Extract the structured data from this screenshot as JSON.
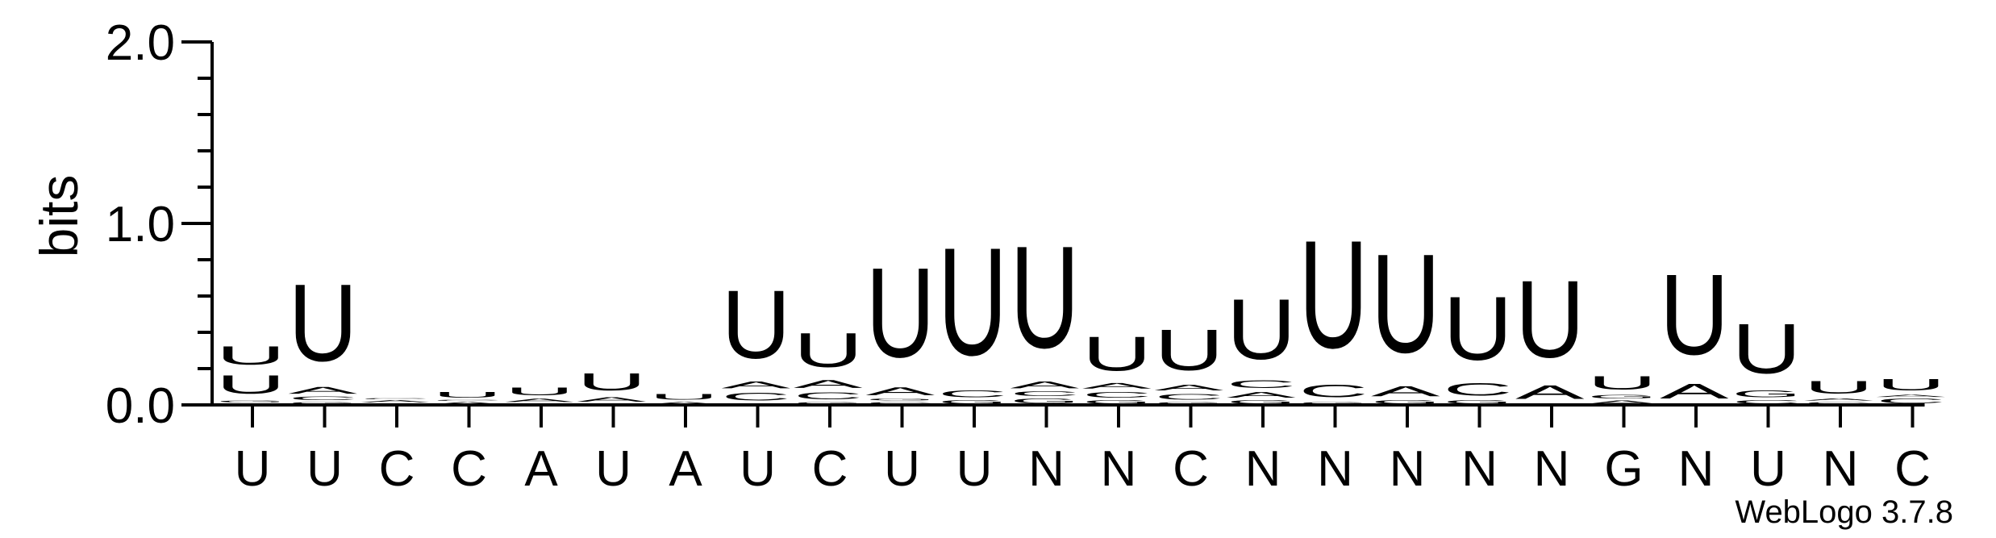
{
  "chart_data": {
    "type": "sequence-logo",
    "ylabel": "bits",
    "yticks": [
      "0.0",
      "1.0",
      "2.0"
    ],
    "ylim": [
      0,
      2
    ],
    "credit": "WebLogo 3.7.8",
    "colors": {
      "U": "#ff8c00",
      "A": "#ff8c00",
      "C": "#0000ee",
      "G": "#0000ee"
    },
    "consensus": [
      "U",
      "U",
      "C",
      "C",
      "A",
      "U",
      "A",
      "U",
      "C",
      "U",
      "U",
      "N",
      "N",
      "C",
      "N",
      "N",
      "N",
      "N",
      "N",
      "G",
      "N",
      "U",
      "N",
      "C"
    ],
    "columns": [
      [
        [
          "C",
          0.01
        ],
        [
          "G",
          0.02
        ],
        [
          "U",
          0.16
        ],
        [
          "U",
          0.16
        ]
      ],
      [
        [
          "G",
          0.02
        ],
        [
          "C",
          0.03
        ],
        [
          "A",
          0.06
        ],
        [
          "U",
          0.68
        ]
      ],
      [
        [
          "U",
          0.01
        ],
        [
          "A",
          0.02
        ],
        [
          "C",
          0.01
        ]
      ],
      [
        [
          "A",
          0.02
        ],
        [
          "C",
          0.01
        ],
        [
          "U",
          0.05
        ]
      ],
      [
        [
          "C",
          0.01
        ],
        [
          "A",
          0.03
        ],
        [
          "U",
          0.07
        ]
      ],
      [
        [
          "C",
          0.01
        ],
        [
          "A",
          0.04
        ],
        [
          "U",
          0.15
        ]
      ],
      [
        [
          "A",
          0.02
        ],
        [
          "U",
          0.05
        ]
      ],
      [
        [
          "G",
          0.01
        ],
        [
          "C",
          0.07
        ],
        [
          "A",
          0.06
        ],
        [
          "U",
          0.6
        ]
      ],
      [
        [
          "G",
          0.02
        ],
        [
          "C",
          0.06
        ],
        [
          "A",
          0.07
        ],
        [
          "U",
          0.3
        ]
      ],
      [
        [
          "C",
          0.02
        ],
        [
          "G",
          0.02
        ],
        [
          "A",
          0.07
        ],
        [
          "U",
          0.79
        ]
      ],
      [
        [
          "G",
          0.03
        ],
        [
          "C",
          0.06
        ],
        [
          "U",
          0.95
        ]
      ],
      [
        [
          "G",
          0.04
        ],
        [
          "C",
          0.04
        ],
        [
          "A",
          0.06
        ],
        [
          "U",
          0.9
        ]
      ],
      [
        [
          "G",
          0.03
        ],
        [
          "C",
          0.05
        ],
        [
          "A",
          0.05
        ],
        [
          "U",
          0.3
        ]
      ],
      [
        [
          "G",
          0.02
        ],
        [
          "C",
          0.05
        ],
        [
          "A",
          0.05
        ],
        [
          "U",
          0.36
        ]
      ],
      [
        [
          "G",
          0.03
        ],
        [
          "A",
          0.05
        ],
        [
          "C",
          0.07
        ],
        [
          "U",
          0.53
        ]
      ],
      [
        [
          "G",
          0.02
        ],
        [
          "C",
          0.11
        ],
        [
          "U",
          0.95
        ]
      ],
      [
        [
          "G",
          0.03
        ],
        [
          "A",
          0.09
        ],
        [
          "U",
          0.87
        ]
      ],
      [
        [
          "G",
          0.03
        ],
        [
          "C",
          0.11
        ],
        [
          "U",
          0.56
        ]
      ],
      [
        [
          "C",
          0.01
        ],
        [
          "A",
          0.12
        ],
        [
          "U",
          0.68
        ]
      ],
      [
        [
          "A",
          0.03
        ],
        [
          "G",
          0.03
        ],
        [
          "U",
          0.12
        ]
      ],
      [
        [
          "C",
          0.01
        ],
        [
          "A",
          0.13
        ],
        [
          "U",
          0.71
        ]
      ],
      [
        [
          "C",
          0.03
        ],
        [
          "G",
          0.06
        ],
        [
          "U",
          0.44
        ]
      ],
      [
        [
          "C",
          0.02
        ],
        [
          "A",
          0.02
        ],
        [
          "U",
          0.11
        ]
      ],
      [
        [
          "C",
          0.04
        ],
        [
          "A",
          0.02
        ],
        [
          "U",
          0.1
        ]
      ]
    ]
  }
}
